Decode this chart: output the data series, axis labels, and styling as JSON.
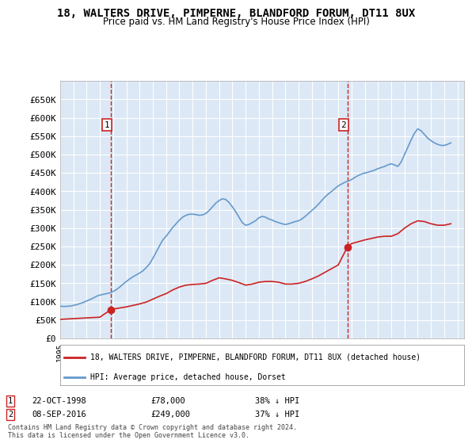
{
  "title": "18, WALTERS DRIVE, PIMPERNE, BLANDFORD FORUM, DT11 8UX",
  "subtitle": "Price paid vs. HM Land Registry's House Price Index (HPI)",
  "bg_color": "#dce8f5",
  "plot_bg_color": "#dce8f5",
  "red_line_label": "18, WALTERS DRIVE, PIMPERNE, BLANDFORD FORUM, DT11 8UX (detached house)",
  "blue_line_label": "HPI: Average price, detached house, Dorset",
  "footnote": "Contains HM Land Registry data © Crown copyright and database right 2024.\nThis data is licensed under the Open Government Licence v3.0.",
  "sale1_date": "22-OCT-1998",
  "sale1_price": "£78,000",
  "sale1_note": "38% ↓ HPI",
  "sale2_date": "08-SEP-2016",
  "sale2_price": "£249,000",
  "sale2_note": "37% ↓ HPI",
  "ylim": [
    0,
    700000
  ],
  "yticks": [
    0,
    50000,
    100000,
    150000,
    200000,
    250000,
    300000,
    350000,
    400000,
    450000,
    500000,
    550000,
    600000,
    650000
  ],
  "xlim_start": 1995.0,
  "xlim_end": 2025.5,
  "sale1_x": 1998.81,
  "sale2_x": 2016.69,
  "hpi_years": [
    1995.0,
    1995.25,
    1995.5,
    1995.75,
    1996.0,
    1996.25,
    1996.5,
    1996.75,
    1997.0,
    1997.25,
    1997.5,
    1997.75,
    1998.0,
    1998.25,
    1998.5,
    1998.75,
    1999.0,
    1999.25,
    1999.5,
    1999.75,
    2000.0,
    2000.25,
    2000.5,
    2000.75,
    2001.0,
    2001.25,
    2001.5,
    2001.75,
    2002.0,
    2002.25,
    2002.5,
    2002.75,
    2003.0,
    2003.25,
    2003.5,
    2003.75,
    2004.0,
    2004.25,
    2004.5,
    2004.75,
    2005.0,
    2005.25,
    2005.5,
    2005.75,
    2006.0,
    2006.25,
    2006.5,
    2006.75,
    2007.0,
    2007.25,
    2007.5,
    2007.75,
    2008.0,
    2008.25,
    2008.5,
    2008.75,
    2009.0,
    2009.25,
    2009.5,
    2009.75,
    2010.0,
    2010.25,
    2010.5,
    2010.75,
    2011.0,
    2011.25,
    2011.5,
    2011.75,
    2012.0,
    2012.25,
    2012.5,
    2012.75,
    2013.0,
    2013.25,
    2013.5,
    2013.75,
    2014.0,
    2014.25,
    2014.5,
    2014.75,
    2015.0,
    2015.25,
    2015.5,
    2015.75,
    2016.0,
    2016.25,
    2016.5,
    2016.75,
    2017.0,
    2017.25,
    2017.5,
    2017.75,
    2018.0,
    2018.25,
    2018.5,
    2018.75,
    2019.0,
    2019.25,
    2019.5,
    2019.75,
    2020.0,
    2020.25,
    2020.5,
    2020.75,
    2021.0,
    2021.25,
    2021.5,
    2021.75,
    2022.0,
    2022.25,
    2022.5,
    2022.75,
    2023.0,
    2023.25,
    2023.5,
    2023.75,
    2024.0,
    2024.25,
    2024.5
  ],
  "hpi_values": [
    88000,
    87000,
    87500,
    88000,
    90000,
    92000,
    95000,
    98000,
    102000,
    106000,
    110000,
    115000,
    118000,
    120000,
    122000,
    124000,
    128000,
    133000,
    140000,
    148000,
    155000,
    162000,
    168000,
    173000,
    178000,
    184000,
    193000,
    203000,
    218000,
    235000,
    252000,
    268000,
    278000,
    290000,
    302000,
    312000,
    322000,
    330000,
    335000,
    338000,
    338000,
    337000,
    335000,
    336000,
    340000,
    348000,
    358000,
    368000,
    375000,
    380000,
    378000,
    370000,
    358000,
    345000,
    330000,
    315000,
    308000,
    310000,
    315000,
    320000,
    328000,
    332000,
    330000,
    325000,
    322000,
    318000,
    315000,
    312000,
    310000,
    312000,
    315000,
    318000,
    320000,
    325000,
    332000,
    340000,
    348000,
    356000,
    365000,
    375000,
    385000,
    393000,
    400000,
    408000,
    415000,
    420000,
    425000,
    428000,
    432000,
    438000,
    443000,
    447000,
    450000,
    452000,
    455000,
    458000,
    462000,
    465000,
    468000,
    472000,
    475000,
    472000,
    468000,
    480000,
    500000,
    520000,
    540000,
    558000,
    570000,
    565000,
    555000,
    545000,
    538000,
    532000,
    528000,
    525000,
    525000,
    528000,
    532000
  ],
  "red_years": [
    1995.0,
    1995.5,
    1996.0,
    1996.5,
    1997.0,
    1997.5,
    1998.0,
    1998.81,
    1999.0,
    1999.5,
    2000.0,
    2000.5,
    2001.0,
    2001.5,
    2002.0,
    2002.5,
    2003.0,
    2003.5,
    2004.0,
    2004.5,
    2005.0,
    2005.5,
    2006.0,
    2006.5,
    2007.0,
    2007.5,
    2008.0,
    2008.5,
    2009.0,
    2009.5,
    2010.0,
    2010.5,
    2011.0,
    2011.5,
    2012.0,
    2012.5,
    2013.0,
    2013.5,
    2014.0,
    2014.5,
    2015.0,
    2015.5,
    2016.0,
    2016.69,
    2017.0,
    2017.5,
    2018.0,
    2018.5,
    2019.0,
    2019.5,
    2020.0,
    2020.5,
    2021.0,
    2021.5,
    2022.0,
    2022.5,
    2023.0,
    2023.5,
    2024.0,
    2024.5
  ],
  "red_values": [
    52000,
    53000,
    54000,
    55000,
    56000,
    57000,
    58000,
    78000,
    80000,
    83000,
    86000,
    90000,
    94000,
    99000,
    107000,
    115000,
    122000,
    132000,
    140000,
    145000,
    147000,
    148000,
    150000,
    158000,
    165000,
    162000,
    158000,
    152000,
    145000,
    148000,
    153000,
    155000,
    155000,
    153000,
    148000,
    148000,
    150000,
    155000,
    162000,
    170000,
    180000,
    190000,
    200000,
    249000,
    258000,
    263000,
    268000,
    272000,
    276000,
    278000,
    278000,
    285000,
    300000,
    312000,
    320000,
    318000,
    312000,
    308000,
    308000,
    312000
  ]
}
